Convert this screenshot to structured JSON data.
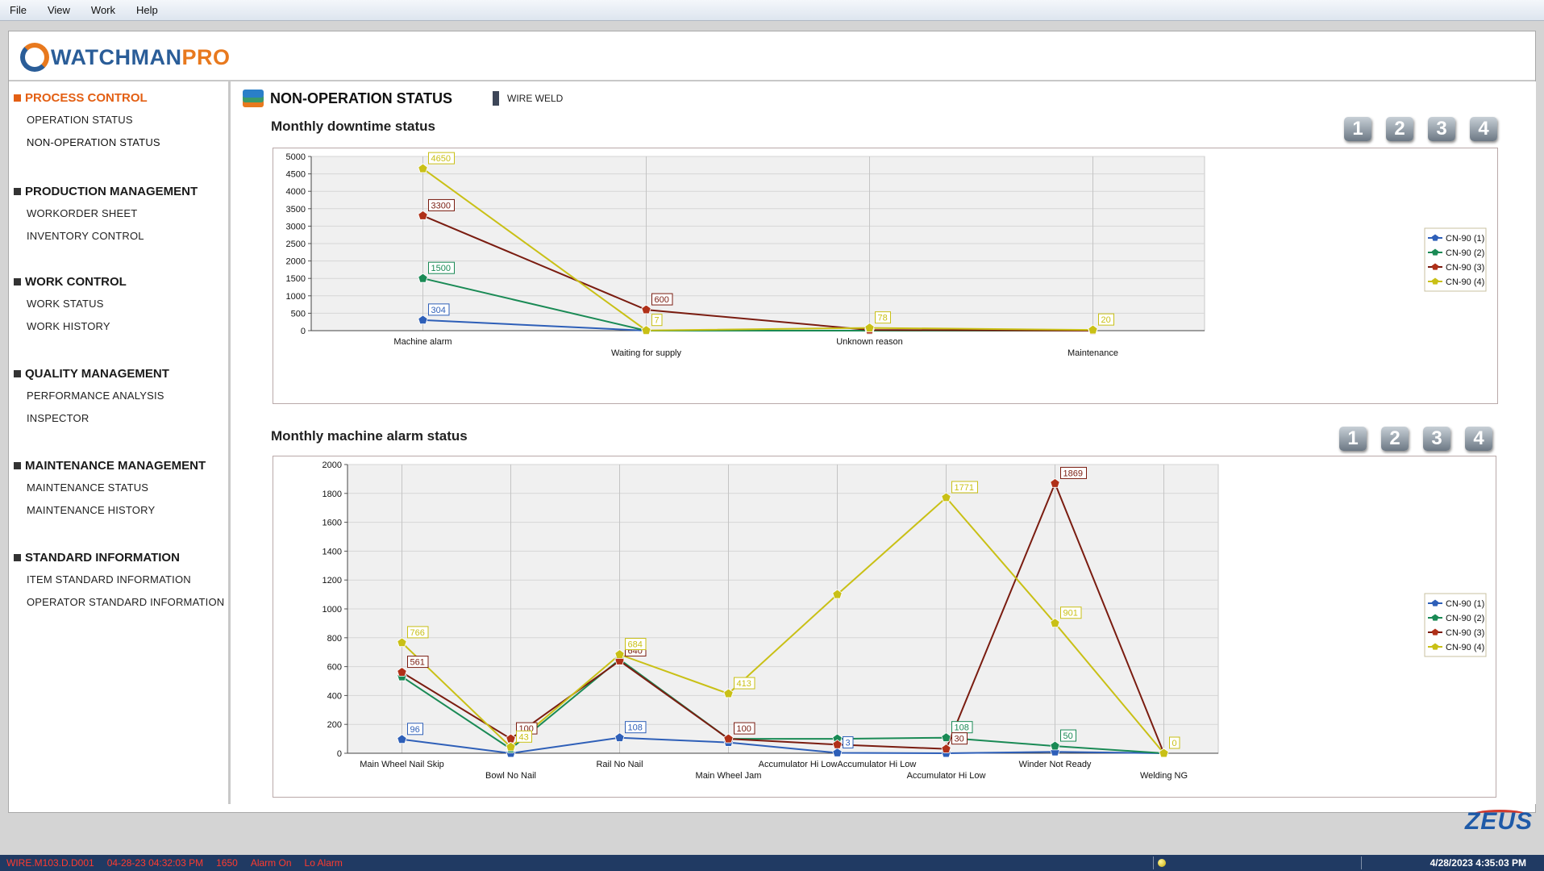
{
  "menu": [
    "File",
    "View",
    "Work",
    "Help"
  ],
  "app": {
    "logo_main": "WATCHMAN",
    "logo_accent": "PRO",
    "footer_logo": "ZEUS"
  },
  "sidebar": {
    "sections": [
      {
        "title": "PROCESS CONTROL",
        "active": true,
        "items": [
          "OPERATION STATUS",
          "NON-OPERATION STATUS"
        ]
      },
      {
        "title": "PRODUCTION MANAGEMENT",
        "items": [
          "WORKORDER SHEET",
          "INVENTORY CONTROL"
        ]
      },
      {
        "title": "WORK CONTROL",
        "items": [
          "WORK STATUS",
          "WORK HISTORY"
        ]
      },
      {
        "title": "QUALITY MANAGEMENT",
        "items": [
          "PERFORMANCE ANALYSIS",
          "INSPECTOR"
        ]
      },
      {
        "title": "MAINTENANCE MANAGEMENT",
        "items": [
          "MAINTENANCE STATUS",
          "MAINTENANCE HISTORY"
        ]
      },
      {
        "title": "STANDARD INFORMATION",
        "items": [
          "ITEM STANDARD INFORMATION",
          "OPERATOR STANDARD INFORMATION"
        ]
      }
    ]
  },
  "page": {
    "title": "NON-OPERATION STATUS",
    "machine": "WIRE WELD",
    "page_buttons": [
      "1",
      "2",
      "3",
      "4"
    ]
  },
  "colors": {
    "series": [
      "#2e5fb8",
      "#1a8a55",
      "#b03018",
      "#c9c016"
    ],
    "series_dark": [
      "#2e5fb8",
      "#1a8a55",
      "#7a1c10",
      "#c9c016"
    ],
    "accent_orange": "#e35f13",
    "status_bar": "#203a63",
    "status_alarm_text": "#ff3b2f"
  },
  "chart_data": [
    {
      "type": "line",
      "title": "Monthly downtime status",
      "categories": [
        "Machine alarm",
        "Waiting for supply",
        "Unknown reason",
        "Maintenance"
      ],
      "ylim": [
        0,
        5000
      ],
      "yticks": [
        0,
        500,
        1000,
        1500,
        2000,
        2500,
        3000,
        3500,
        4000,
        4500,
        5000
      ],
      "grid": true,
      "legend_position": "right",
      "series": [
        {
          "name": "CN-90 (1)",
          "values": [
            304,
            0,
            0,
            0
          ],
          "labels": [
            "304",
            "",
            "",
            ""
          ]
        },
        {
          "name": "CN-90 (2)",
          "values": [
            1500,
            0,
            0,
            0
          ],
          "labels": [
            "1500",
            "",
            "",
            ""
          ]
        },
        {
          "name": "CN-90 (3)",
          "values": [
            3300,
            600,
            20,
            0
          ],
          "labels": [
            "3300",
            "600",
            "",
            ""
          ]
        },
        {
          "name": "CN-90 (4)",
          "values": [
            4650,
            7,
            78,
            20
          ],
          "labels": [
            "4650",
            "7",
            "78",
            "20"
          ]
        }
      ]
    },
    {
      "type": "line",
      "title": "Monthly machine alarm status",
      "categories": [
        "Main Wheel Nail Skip",
        "Bowl No Nail",
        "Rail No Nail",
        "Main Wheel Jam",
        "Accumulator Hi LowAccumulator Hi Low",
        "Accumulator Hi Low",
        "Winder Not Ready",
        "Welding NG"
      ],
      "ylim": [
        0,
        2000
      ],
      "yticks": [
        0,
        200,
        400,
        600,
        800,
        1000,
        1200,
        1400,
        1600,
        1800,
        2000
      ],
      "grid": true,
      "legend_position": "right",
      "series": [
        {
          "name": "CN-90 (1)",
          "values": [
            96,
            0,
            108,
            75,
            3,
            0,
            10,
            0
          ],
          "labels": [
            "96",
            "",
            "108",
            "",
            "3",
            "",
            "",
            ""
          ]
        },
        {
          "name": "CN-90 (2)",
          "values": [
            530,
            30,
            650,
            100,
            100,
            108,
            50,
            0
          ],
          "labels": [
            "",
            "",
            "",
            "",
            "",
            "108",
            "50",
            ""
          ]
        },
        {
          "name": "CN-90 (3)",
          "values": [
            561,
            100,
            640,
            100,
            60,
            30,
            1869,
            0
          ],
          "labels": [
            "561",
            "100",
            "640",
            "100",
            "",
            "30",
            "1869",
            ""
          ]
        },
        {
          "name": "CN-90 (4)",
          "values": [
            766,
            43,
            684,
            413,
            1100,
            1771,
            901,
            0
          ],
          "labels": [
            "766",
            "43",
            "684",
            "413",
            "",
            "1771",
            "901",
            "0"
          ]
        }
      ]
    }
  ],
  "status_bar": {
    "machine_code": "WIRE.M103.D.D001",
    "timestamp": "04-28-23 04:32:03 PM",
    "count": "1650",
    "alarm_state": "Alarm On",
    "alarm_level": "Lo Alarm",
    "datetime": "4/28/2023 4:35:03 PM"
  }
}
